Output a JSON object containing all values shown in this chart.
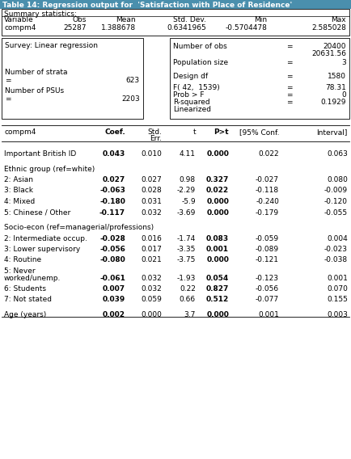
{
  "title": "Table 14: Regression output for  'Satisfaction with Place of Residence'",
  "title_color": "#1F6080",
  "background_color": "#ffffff",
  "summary_stats": {
    "row": [
      "compm4",
      "25287",
      "1.388678",
      "0.6341965",
      "-0.5704478",
      "2.585028"
    ]
  },
  "reg_rows": [
    {
      "label": "Important British ID",
      "coef": "0.043",
      "se": "0.010",
      "t": "4.11",
      "p": "0.000",
      "ci_lo": "0.022",
      "ci_hi": "0.063",
      "bold_coef": true,
      "bold_p": true,
      "group": false,
      "blank": false
    },
    {
      "label": "",
      "coef": "",
      "se": "",
      "t": "",
      "p": "",
      "ci_lo": "",
      "ci_hi": "",
      "bold_coef": false,
      "bold_p": false,
      "group": false,
      "blank": true
    },
    {
      "label": "Ethnic group (ref=white)",
      "coef": "",
      "se": "",
      "t": "",
      "p": "",
      "ci_lo": "",
      "ci_hi": "",
      "bold_coef": false,
      "bold_p": false,
      "group": true,
      "blank": false
    },
    {
      "label": "2: Asian",
      "coef": "0.027",
      "se": "0.027",
      "t": "0.98",
      "p": "0.327",
      "ci_lo": "-0.027",
      "ci_hi": "0.080",
      "bold_coef": true,
      "bold_p": true,
      "group": false,
      "blank": false
    },
    {
      "label": "3: Black",
      "coef": "-0.063",
      "se": "0.028",
      "t": "-2.29",
      "p": "0.022",
      "ci_lo": "-0.118",
      "ci_hi": "-0.009",
      "bold_coef": true,
      "bold_p": true,
      "group": false,
      "blank": false
    },
    {
      "label": "4: Mixed",
      "coef": "-0.180",
      "se": "0.031",
      "t": "-5.9",
      "p": "0.000",
      "ci_lo": "-0.240",
      "ci_hi": "-0.120",
      "bold_coef": true,
      "bold_p": true,
      "group": false,
      "blank": false
    },
    {
      "label": "5: Chinese / Other",
      "coef": "-0.117",
      "se": "0.032",
      "t": "-3.69",
      "p": "0.000",
      "ci_lo": "-0.179",
      "ci_hi": "-0.055",
      "bold_coef": true,
      "bold_p": true,
      "group": false,
      "blank": false
    },
    {
      "label": "",
      "coef": "",
      "se": "",
      "t": "",
      "p": "",
      "ci_lo": "",
      "ci_hi": "",
      "bold_coef": false,
      "bold_p": false,
      "group": false,
      "blank": true
    },
    {
      "label": "Socio-econ (ref=managerial/professions)",
      "coef": "",
      "se": "",
      "t": "",
      "p": "",
      "ci_lo": "",
      "ci_hi": "",
      "bold_coef": false,
      "bold_p": false,
      "group": true,
      "blank": false
    },
    {
      "label": "2: Intermediate occup.",
      "coef": "-0.028",
      "se": "0.016",
      "t": "-1.74",
      "p": "0.083",
      "ci_lo": "-0.059",
      "ci_hi": "0.004",
      "bold_coef": true,
      "bold_p": true,
      "group": false,
      "blank": false
    },
    {
      "label": "3: Lower supervisory",
      "coef": "-0.056",
      "se": "0.017",
      "t": "-3.35",
      "p": "0.001",
      "ci_lo": "-0.089",
      "ci_hi": "-0.023",
      "bold_coef": true,
      "bold_p": true,
      "group": false,
      "blank": false
    },
    {
      "label": "4: Routine",
      "coef": "-0.080",
      "se": "0.021",
      "t": "-3.75",
      "p": "0.000",
      "ci_lo": "-0.121",
      "ci_hi": "-0.038",
      "bold_coef": true,
      "bold_p": true,
      "group": false,
      "blank": false
    },
    {
      "label": "5: Never\nworked/unemp.",
      "coef": "-0.061",
      "se": "0.032",
      "t": "-1.93",
      "p": "0.054",
      "ci_lo": "-0.123",
      "ci_hi": "0.001",
      "bold_coef": true,
      "bold_p": true,
      "group": false,
      "blank": false
    },
    {
      "label": "6: Students",
      "coef": "0.007",
      "se": "0.032",
      "t": "0.22",
      "p": "0.827",
      "ci_lo": "-0.056",
      "ci_hi": "0.070",
      "bold_coef": true,
      "bold_p": true,
      "group": false,
      "blank": false
    },
    {
      "label": "7: Not stated",
      "coef": "0.039",
      "se": "0.059",
      "t": "0.66",
      "p": "0.512",
      "ci_lo": "-0.077",
      "ci_hi": "0.155",
      "bold_coef": true,
      "bold_p": true,
      "group": false,
      "blank": false
    },
    {
      "label": "",
      "coef": "",
      "se": "",
      "t": "",
      "p": "",
      "ci_lo": "",
      "ci_hi": "",
      "bold_coef": false,
      "bold_p": false,
      "group": false,
      "blank": true
    },
    {
      "label": "Age (years)",
      "coef": "0.002",
      "se": "0.000",
      "t": "3.7",
      "p": "0.000",
      "ci_lo": "0.001",
      "ci_hi": "0.003",
      "bold_coef": true,
      "bold_p": true,
      "group": false,
      "blank": false
    }
  ]
}
